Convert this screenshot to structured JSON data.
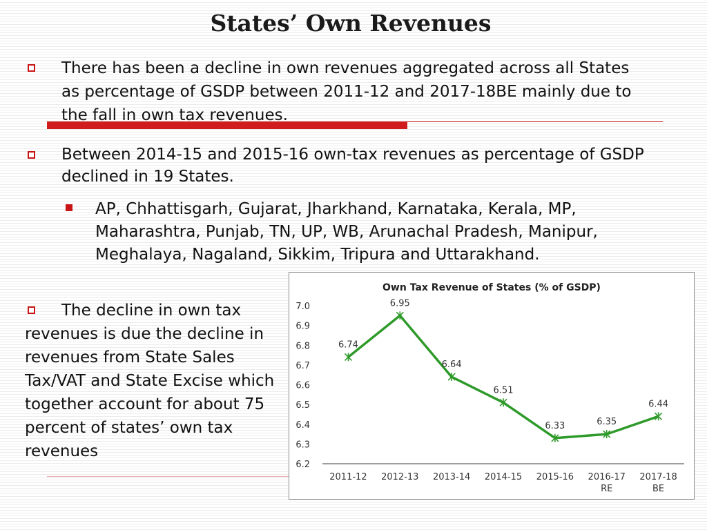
{
  "slide": {
    "title": "States’ Own Revenues",
    "bullet1": "There has been a decline in own revenues aggregated across all States as percentage of GSDP between 2011-12 and 2017-18BE mainly due to the fall in own tax revenues.",
    "bullet2": "Between 2014-15 and 2015-16 own-tax revenues as percentage of GSDP declined in 19 States.",
    "sub_bullet": "AP, Chhattisgarh, Gujarat, Jharkhand, Karnataka, Kerala, MP, Maharashtra, Punjab, TN, UP, WB, Arunachal Pradesh, Manipur, Meghalaya, Nagaland, Sikkim, Tripura and Uttarakhand.",
    "bullet3_line1": "The decline in own tax",
    "bullet3_rest": "revenues is due the decline in revenues from State Sales Tax/VAT and State Excise which together account for about 75 percent of states’ own tax revenues"
  },
  "colors": {
    "accent": "#d01c1c",
    "line": "#2e9a2a",
    "axis": "#7f7f7f"
  },
  "chart_data": {
    "type": "line",
    "title": "Own Tax Revenue of States (% of GSDP)",
    "categories": [
      "2011-12",
      "2012-13",
      "2013-14",
      "2014-15",
      "2015-16",
      "2016-17 RE",
      "2017-18 BE"
    ],
    "values": [
      6.74,
      6.95,
      6.64,
      6.51,
      6.33,
      6.35,
      6.44
    ],
    "data_labels": [
      "6.74",
      "6.95",
      "6.64",
      "6.51",
      "6.33",
      "6.35",
      "6.44"
    ],
    "yticks": [
      "6.2",
      "6.3",
      "6.4",
      "6.5",
      "6.6",
      "6.7",
      "6.8",
      "6.9",
      "7.0"
    ],
    "ylim": [
      6.2,
      7.0
    ],
    "grid": false,
    "legend": "none",
    "xlabel": "",
    "ylabel": ""
  }
}
